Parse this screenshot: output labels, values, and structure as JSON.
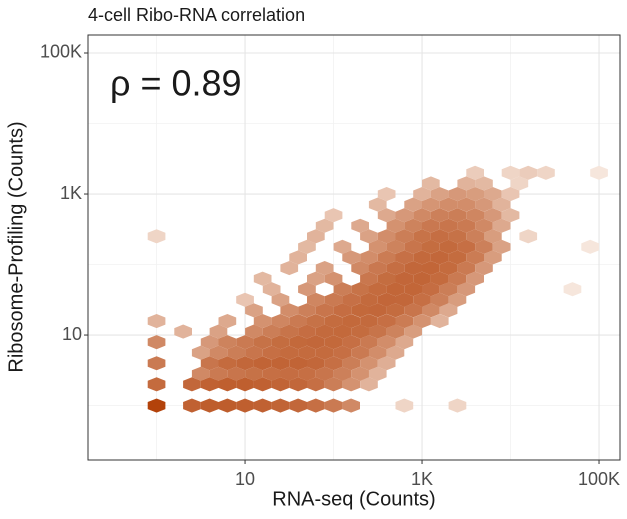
{
  "chart_data": {
    "type": "hexbin",
    "title": "4-cell Ribo-RNA correlation",
    "x_label": "RNA-seq (Counts)",
    "y_label": "Ribosome-Profiling (Counts)",
    "annotation": "ρ = 0.89",
    "log_x": true,
    "log_y": true,
    "grid": true,
    "xlim": [
      0.168,
      172600
    ],
    "ylim": [
      0.169,
      180000
    ],
    "xticks": [
      10,
      {
        "value": 1000,
        "label": "1K"
      },
      {
        "value": 100000,
        "label": "100K"
      }
    ],
    "yticks": [
      10,
      {
        "value": 1000,
        "label": "1K"
      },
      {
        "value": 100000,
        "label": "100K"
      }
    ],
    "minor_xticks": [
      1,
      100,
      10000
    ],
    "minor_yticks": [
      1,
      100,
      10000
    ],
    "low_color": "#f6e6dc",
    "high_color": "#b3420a",
    "x": [
      1,
      2.51,
      3.98,
      6.31,
      10,
      15.8,
      25.1,
      39.8,
      63.1,
      100,
      158,
      631,
      2512,
      1,
      2.51,
      3.98,
      6.31,
      10,
      15.8,
      25.1,
      39.8,
      63.1,
      100,
      158,
      251,
      3.16,
      5.01,
      7.94,
      12.6,
      20,
      31.6,
      50.1,
      79.4,
      126,
      200,
      316,
      1,
      3.98,
      6.31,
      10,
      15.8,
      25.1,
      39.8,
      63.1,
      100,
      158,
      251,
      398,
      3.16,
      5.01,
      7.94,
      12.6,
      20,
      31.6,
      50.1,
      79.4,
      126,
      200,
      316,
      501,
      1,
      3.98,
      6.31,
      10,
      15.8,
      25.1,
      39.8,
      63.1,
      100,
      158,
      251,
      398,
      631,
      2,
      5.01,
      12.6,
      20,
      31.6,
      50.1,
      79.4,
      126,
      200,
      316,
      501,
      794,
      1,
      6.31,
      15.8,
      25.1,
      39.8,
      63.1,
      100,
      158,
      251,
      398,
      631,
      1000,
      1585,
      12.6,
      31.6,
      50.1,
      79.4,
      126,
      200,
      316,
      501,
      794,
      1259,
      1995,
      10,
      25.1,
      63.1,
      100,
      158,
      251,
      398,
      631,
      1000,
      1585,
      2512,
      20,
      50.1,
      126,
      200,
      316,
      501,
      794,
      1259,
      1995,
      3162,
      50119,
      15.8,
      63.1,
      100,
      251,
      398,
      631,
      1000,
      1585,
      2512,
      3981,
      31.6,
      79.4,
      200,
      316,
      501,
      794,
      1259,
      1995,
      3162,
      5012,
      39.8,
      158,
      251,
      398,
      631,
      1000,
      1585,
      2512,
      3981,
      6310,
      50.1,
      126,
      316,
      501,
      794,
      1259,
      1995,
      3162,
      5012,
      7943,
      79433,
      1,
      63.1,
      251,
      398,
      631,
      1000,
      1585,
      2512,
      3981,
      6310,
      15849,
      79.4,
      200,
      501,
      794,
      1259,
      1995,
      3162,
      5012,
      7943,
      100,
      398,
      631,
      1000,
      1585,
      2512,
      3981,
      6310,
      10000,
      316,
      794,
      1259,
      1995,
      3162,
      5012,
      7943,
      398,
      1000,
      1585,
      2512,
      3981,
      6310,
      10000,
      1259,
      3162,
      5012,
      12589,
      3981,
      10000,
      15849,
      25119,
      100000
    ],
    "y": [
      1,
      1,
      1,
      1,
      1,
      1,
      1,
      1,
      1,
      1,
      1,
      1,
      1,
      2,
      2,
      2,
      2,
      2,
      2,
      2,
      2,
      2,
      2,
      2,
      2,
      2.82,
      2.82,
      2.82,
      2.82,
      2.82,
      2.82,
      2.82,
      2.82,
      2.82,
      2.82,
      2.82,
      3.98,
      3.98,
      3.98,
      3.98,
      3.98,
      3.98,
      3.98,
      3.98,
      3.98,
      3.98,
      3.98,
      3.98,
      5.62,
      5.62,
      5.62,
      5.62,
      5.62,
      5.62,
      5.62,
      5.62,
      5.62,
      5.62,
      5.62,
      5.62,
      7.94,
      7.94,
      7.94,
      7.94,
      7.94,
      7.94,
      7.94,
      7.94,
      7.94,
      7.94,
      7.94,
      7.94,
      7.94,
      11.2,
      11.2,
      11.2,
      11.2,
      11.2,
      11.2,
      11.2,
      11.2,
      11.2,
      11.2,
      11.2,
      11.2,
      15.8,
      15.8,
      15.8,
      15.8,
      15.8,
      15.8,
      15.8,
      15.8,
      15.8,
      15.8,
      15.8,
      15.8,
      15.8,
      22.4,
      22.4,
      22.4,
      22.4,
      22.4,
      22.4,
      22.4,
      22.4,
      22.4,
      22.4,
      22.4,
      31.6,
      31.6,
      31.6,
      31.6,
      31.6,
      31.6,
      31.6,
      31.6,
      31.6,
      31.6,
      31.6,
      44.7,
      44.7,
      44.7,
      44.7,
      44.7,
      44.7,
      44.7,
      44.7,
      44.7,
      44.7,
      44.7,
      63.1,
      63.1,
      63.1,
      63.1,
      63.1,
      63.1,
      63.1,
      63.1,
      63.1,
      63.1,
      89.1,
      89.1,
      89.1,
      89.1,
      89.1,
      89.1,
      89.1,
      89.1,
      89.1,
      89.1,
      126,
      126,
      126,
      126,
      126,
      126,
      126,
      126,
      126,
      126,
      178,
      178,
      178,
      178,
      178,
      178,
      178,
      178,
      178,
      178,
      178,
      251,
      251,
      251,
      251,
      251,
      251,
      251,
      251,
      251,
      251,
      251,
      355,
      355,
      355,
      355,
      355,
      355,
      355,
      355,
      355,
      501,
      501,
      501,
      501,
      501,
      501,
      501,
      501,
      501,
      708,
      708,
      708,
      708,
      708,
      708,
      708,
      1000,
      1000,
      1000,
      1000,
      1000,
      1000,
      1000,
      1413,
      1413,
      1413,
      1413,
      1995,
      1995,
      1995,
      1995,
      1995
    ],
    "counts": [
      2000,
      400,
      500,
      500,
      450,
      400,
      350,
      300,
      200,
      120,
      60,
      3,
      3,
      250,
      300,
      400,
      450,
      450,
      400,
      350,
      300,
      200,
      100,
      40,
      10,
      60,
      120,
      150,
      180,
      200,
      220,
      200,
      150,
      90,
      40,
      10,
      120,
      150,
      250,
      300,
      350,
      350,
      350,
      300,
      200,
      100,
      40,
      12,
      20,
      60,
      100,
      150,
      200,
      250,
      250,
      250,
      200,
      120,
      50,
      15,
      60,
      30,
      80,
      120,
      180,
      230,
      280,
      300,
      280,
      200,
      120,
      50,
      15,
      10,
      20,
      60,
      100,
      160,
      220,
      260,
      280,
      240,
      160,
      80,
      25,
      10,
      15,
      40,
      70,
      120,
      180,
      240,
      280,
      260,
      200,
      110,
      40,
      10,
      20,
      50,
      90,
      150,
      220,
      280,
      300,
      240,
      150,
      60,
      15,
      5,
      20,
      70,
      120,
      190,
      260,
      310,
      300,
      200,
      90,
      25,
      10,
      30,
      100,
      170,
      250,
      320,
      320,
      220,
      100,
      30,
      2,
      8,
      20,
      40,
      140,
      230,
      310,
      330,
      250,
      120,
      30,
      10,
      20,
      60,
      130,
      210,
      300,
      320,
      250,
      120,
      30,
      10,
      30,
      50,
      110,
      190,
      270,
      300,
      240,
      110,
      25,
      8,
      15,
      40,
      80,
      150,
      230,
      260,
      200,
      90,
      20,
      2,
      3,
      10,
      20,
      50,
      100,
      170,
      210,
      180,
      90,
      25,
      3,
      8,
      15,
      40,
      80,
      130,
      150,
      120,
      60,
      15,
      5,
      15,
      30,
      60,
      90,
      100,
      70,
      30,
      8,
      8,
      20,
      35,
      50,
      50,
      30,
      10,
      5,
      10,
      20,
      30,
      25,
      15,
      5,
      8,
      10,
      8,
      3,
      4,
      3,
      4,
      3,
      2
    ]
  }
}
